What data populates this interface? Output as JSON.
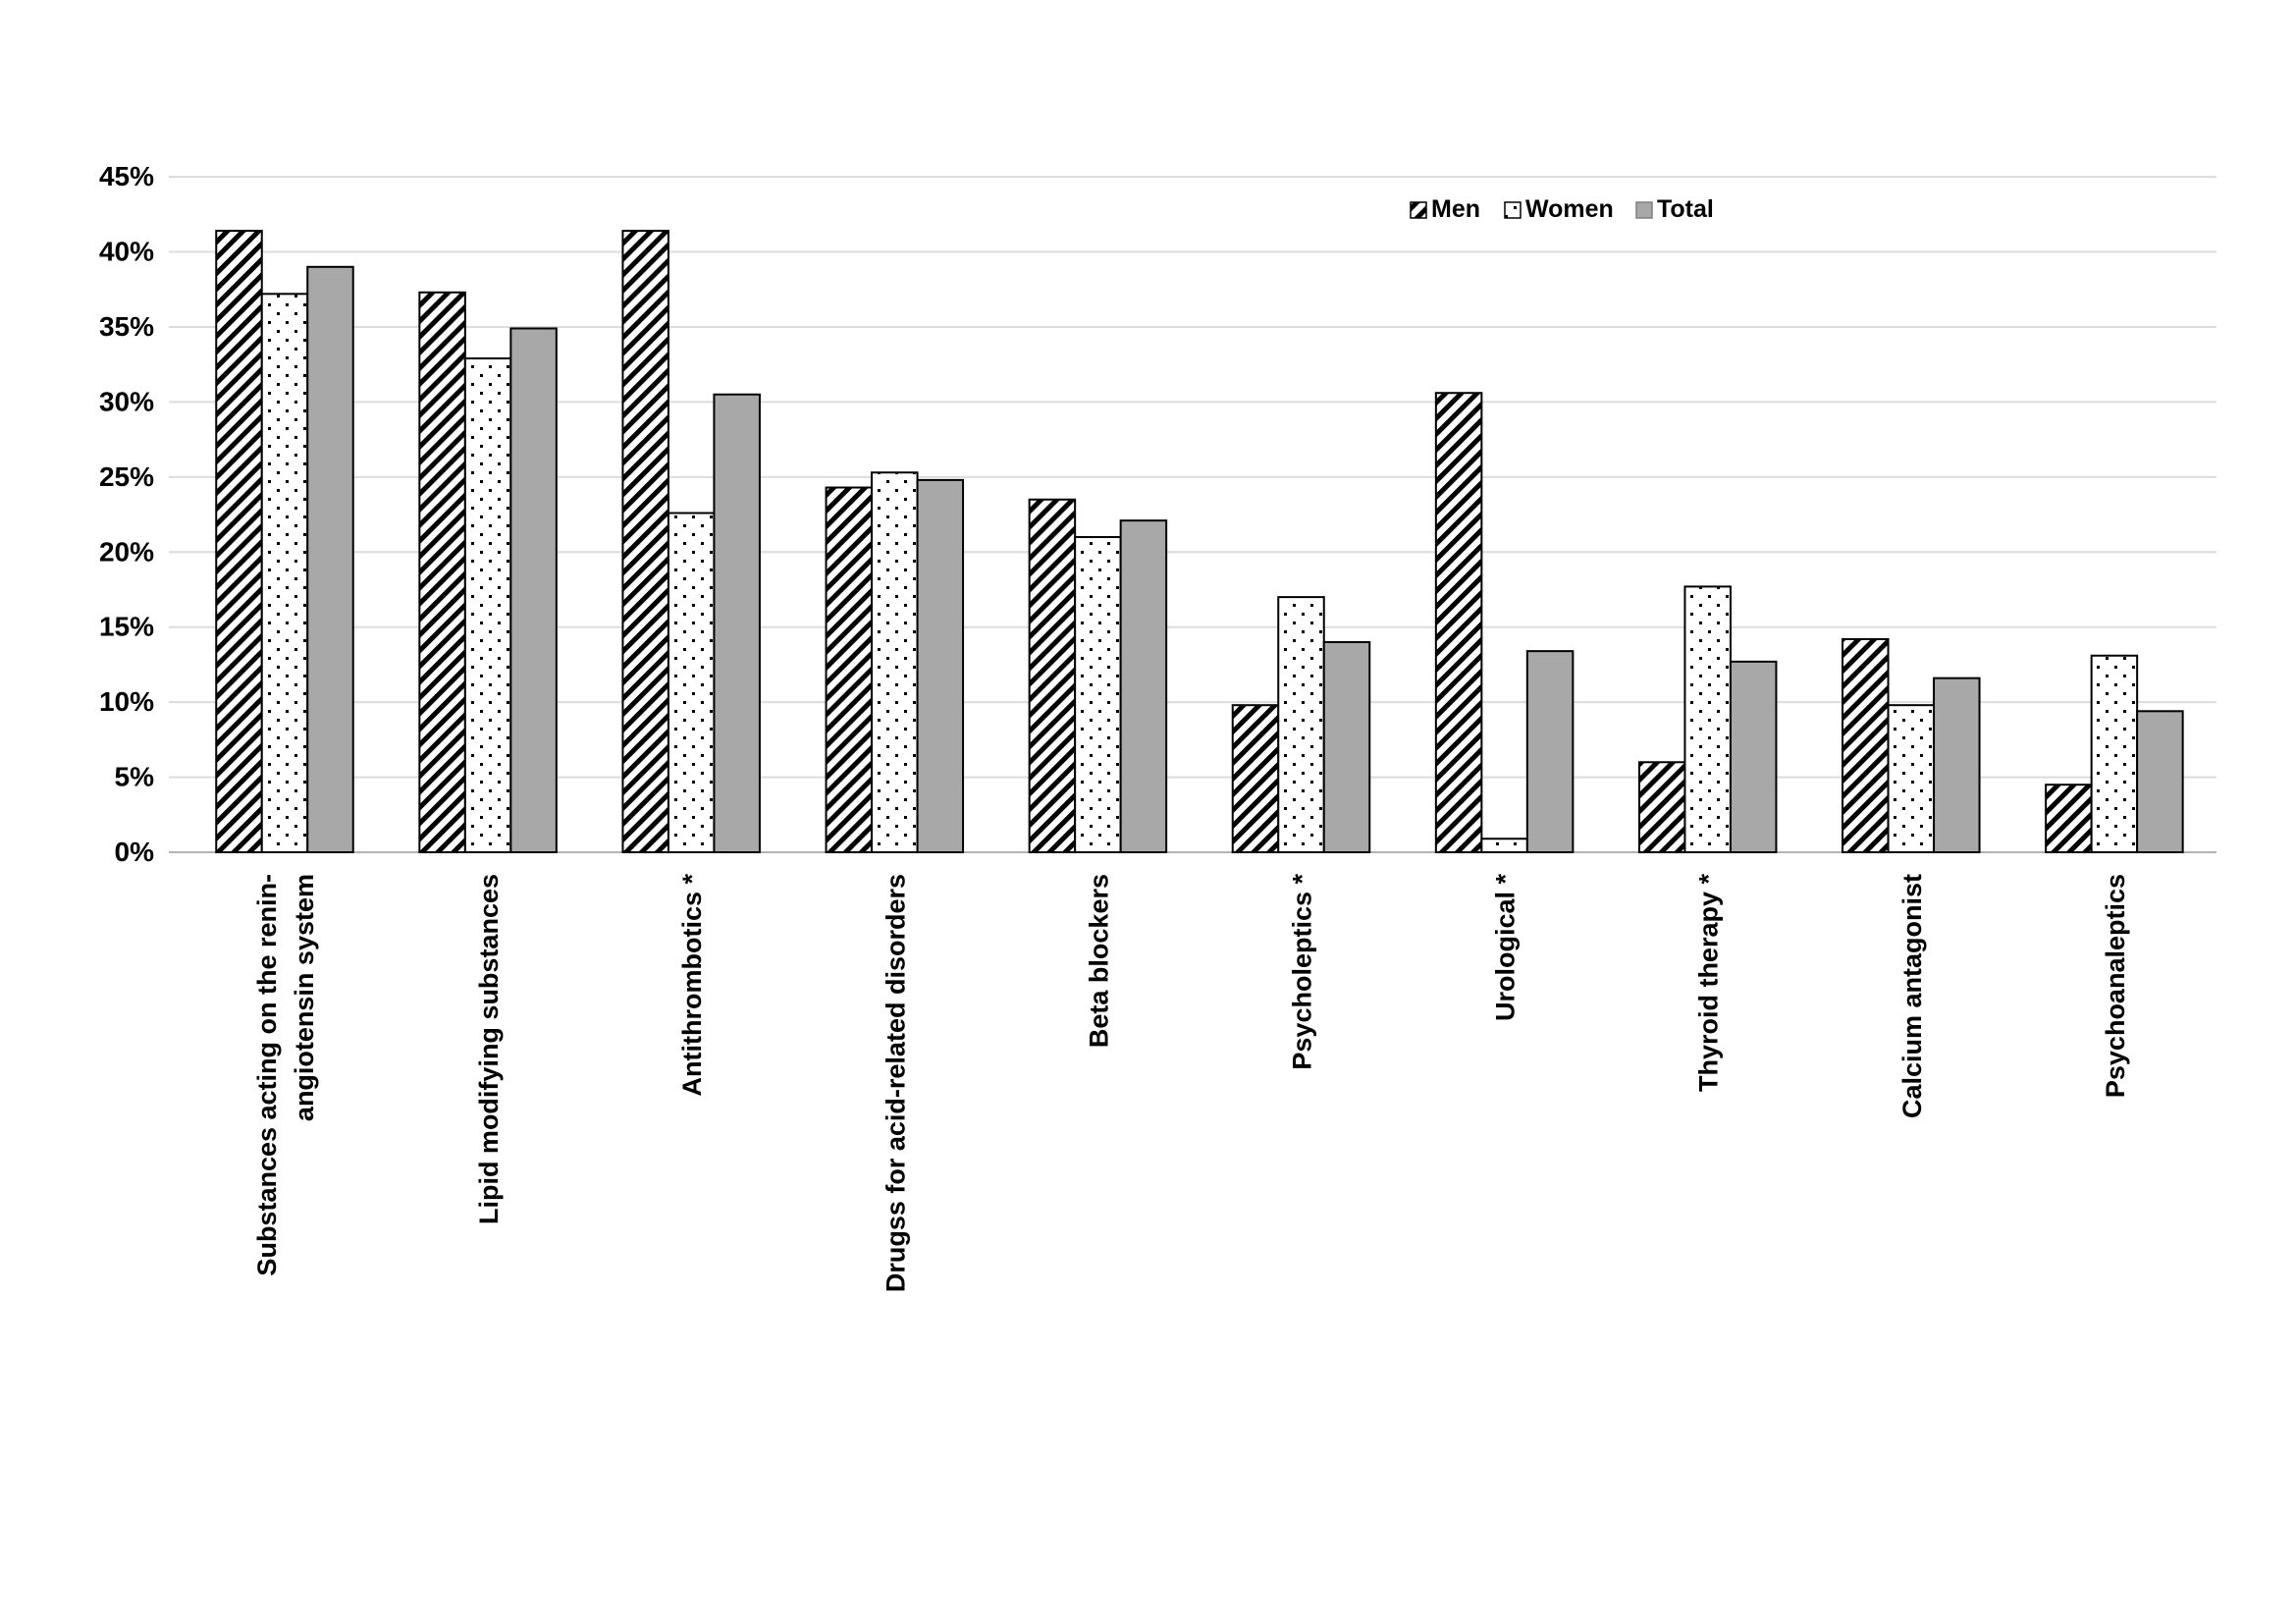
{
  "chart_data": {
    "type": "bar",
    "title": "",
    "xlabel": "",
    "ylabel": "",
    "ylim": [
      0,
      45
    ],
    "grid": true,
    "legend_position": "top-right-inside",
    "y_tick_labels": [
      "0%",
      "5%",
      "10%",
      "15%",
      "20%",
      "25%",
      "30%",
      "35%",
      "40%",
      "45%"
    ],
    "y_tick_values": [
      0,
      5,
      10,
      15,
      20,
      25,
      30,
      35,
      40,
      45
    ],
    "categories": [
      "Substances acting on the renin-angiotensin system",
      "Lipid modifying substances",
      "Antithrombotics *",
      "Drugss for acid-related disorders",
      "Beta blockers",
      "Psycholeptics *",
      "Urological *",
      "Thyroid therapy *",
      "Calcium antagonist",
      "Psychoanaleptics"
    ],
    "categories_wrapped": [
      [
        "Substances acting on the renin-",
        "angiotensin system"
      ],
      [
        "Lipid modifying substances"
      ],
      [
        "Antithrombotics *"
      ],
      [
        "Drugss for acid-related disorders"
      ],
      [
        "Beta blockers"
      ],
      [
        "Psycholeptics *"
      ],
      [
        "Urological *"
      ],
      [
        "Thyroid therapy *"
      ],
      [
        "Calcium antagonist"
      ],
      [
        "Psychoanaleptics"
      ]
    ],
    "series": [
      {
        "name": "Men",
        "pattern": "diagonal-hatch",
        "values": [
          41.4,
          37.3,
          41.4,
          24.3,
          23.5,
          9.8,
          30.6,
          6.0,
          14.2,
          4.5
        ]
      },
      {
        "name": "Women",
        "pattern": "dots",
        "values": [
          37.2,
          32.9,
          22.6,
          25.3,
          21.0,
          17.0,
          0.9,
          17.7,
          9.8,
          13.1
        ]
      },
      {
        "name": "Total",
        "pattern": "solid-gray",
        "values": [
          39.0,
          34.9,
          30.5,
          24.8,
          22.1,
          14.0,
          13.4,
          12.7,
          11.6,
          9.4
        ]
      }
    ],
    "colors": {
      "total_fill": "#a8a8a8",
      "bar_stroke": "#000000",
      "gridline": "#dcdcdc",
      "axis_line": "#b3b3b3",
      "text": "#000000",
      "background": "#ffffff"
    },
    "legend": [
      {
        "label": "Men"
      },
      {
        "label": "Women"
      },
      {
        "label": "Total"
      }
    ]
  }
}
